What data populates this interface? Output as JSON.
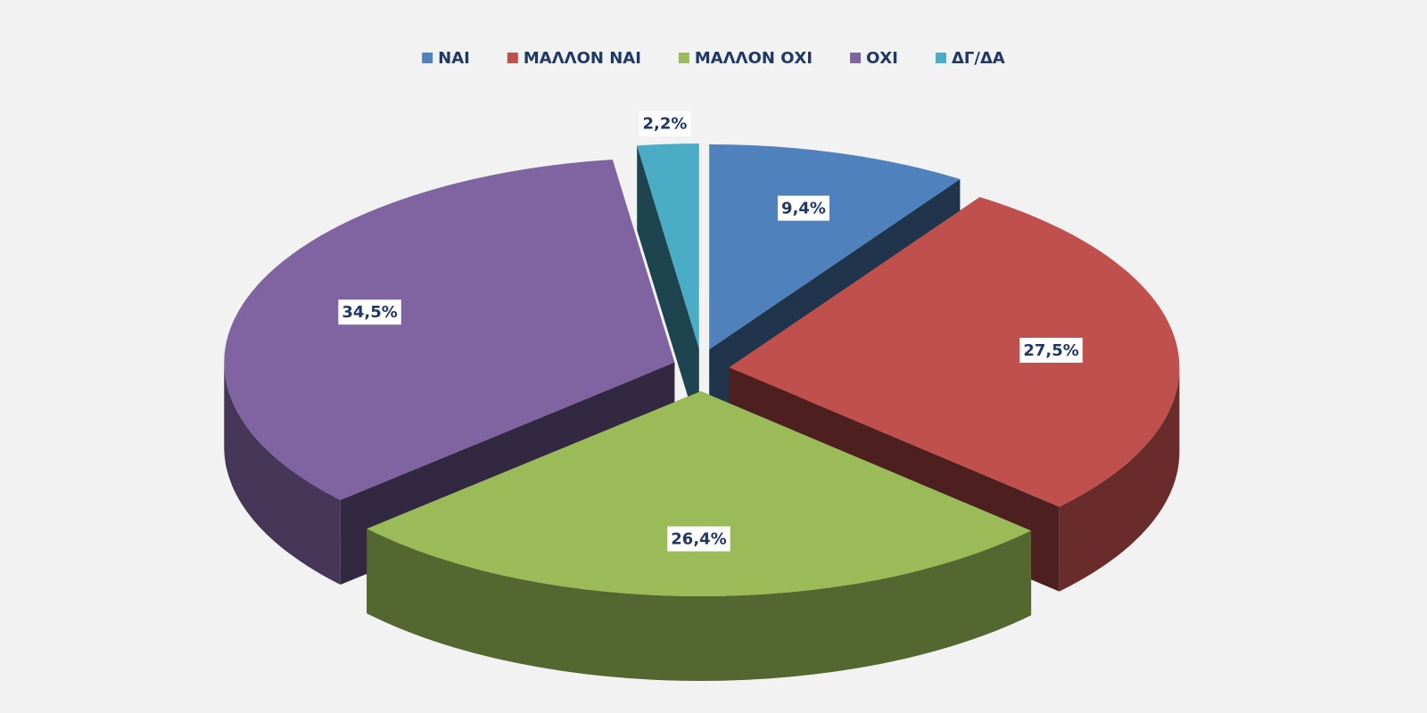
{
  "chart_data": {
    "type": "pie3d",
    "categories": [
      "ΝΑΙ",
      "ΜΑΛΛΟΝ ΝΑΙ",
      "ΜΑΛΛΟΝ ΟΧΙ",
      "ΟΧΙ",
      "ΔΓ/ΔΑ"
    ],
    "values": [
      9.4,
      27.5,
      26.4,
      34.5,
      2.2
    ],
    "value_labels": [
      "9,4%",
      "27,5%",
      "26,4%",
      "34,5%",
      "2,2%"
    ],
    "colors": [
      "#4f81bd",
      "#c0504d",
      "#9bbb59",
      "#8064a2",
      "#4bacc6"
    ],
    "legend": "top"
  }
}
